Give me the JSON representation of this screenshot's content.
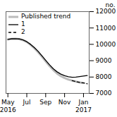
{
  "chart_data": {
    "type": "line",
    "ylabel": "no.",
    "xlim": [
      -0.2,
      8.6
    ],
    "xticks": [
      {
        "value": 0,
        "label": "May"
      },
      {
        "value": 2,
        "label": "Jul"
      },
      {
        "value": 4,
        "label": "Sep"
      },
      {
        "value": 6,
        "label": "Nov"
      },
      {
        "value": 8,
        "label": "Jan"
      }
    ],
    "ylim": [
      7000,
      12000
    ],
    "yticks": [
      7000,
      8000,
      9000,
      10000,
      11000,
      12000
    ],
    "grid": false,
    "legend": "upper left",
    "series": [
      {
        "name": "Published trend",
        "color": "#bbbbbb",
        "line_style": "solid",
        "x": [
          0,
          0.4,
          0.8,
          1.2,
          1.6,
          2.0,
          2.4,
          2.8,
          3.2,
          3.6,
          4.0,
          4.4,
          4.8,
          5.2,
          5.6,
          6.0,
          6.4,
          6.8,
          7.2,
          7.6,
          8.0
        ],
        "values": [
          10300,
          10335,
          10345,
          10320,
          10255,
          10140,
          9970,
          9760,
          9520,
          9250,
          8960,
          8680,
          8430,
          8220,
          8060,
          7940,
          7850,
          7780,
          7720,
          7670,
          7640
        ]
      },
      {
        "name": "1",
        "color": "#000000",
        "line_style": "solid",
        "x": [
          0,
          0.4,
          0.8,
          1.2,
          1.6,
          2.0,
          2.4,
          2.8,
          3.2,
          3.6,
          4.0,
          4.4,
          4.8,
          5.2,
          5.6,
          6.0,
          6.4,
          6.8,
          7.2,
          7.6,
          8.0,
          8.4
        ],
        "values": [
          10300,
          10340,
          10350,
          10330,
          10270,
          10160,
          10000,
          9800,
          9570,
          9300,
          9020,
          8750,
          8510,
          8320,
          8180,
          8080,
          8020,
          7990,
          8000,
          8030,
          8060,
          8090
        ]
      },
      {
        "name": "2",
        "color": "#000000",
        "line_style": "dashed",
        "x": [
          6.8,
          7.2,
          7.6,
          8.0,
          8.4
        ],
        "values": [
          7780,
          7720,
          7670,
          7640,
          7590
        ]
      }
    ],
    "annotations": [
      {
        "text": "2016",
        "x": 0
      },
      {
        "text": "2017",
        "x": 8
      }
    ]
  }
}
